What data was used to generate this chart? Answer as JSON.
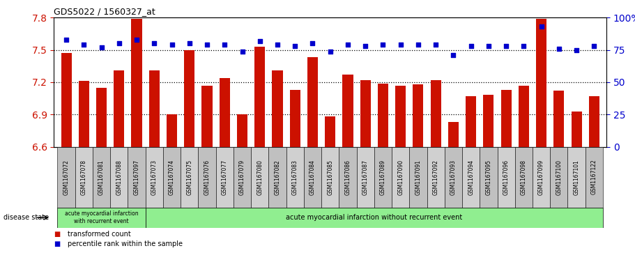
{
  "title": "GDS5022 / 1560327_at",
  "samples": [
    "GSM1167072",
    "GSM1167078",
    "GSM1167081",
    "GSM1167088",
    "GSM1167097",
    "GSM1167073",
    "GSM1167074",
    "GSM1167075",
    "GSM1167076",
    "GSM1167077",
    "GSM1167079",
    "GSM1167080",
    "GSM1167082",
    "GSM1167083",
    "GSM1167084",
    "GSM1167085",
    "GSM1167086",
    "GSM1167087",
    "GSM1167089",
    "GSM1167090",
    "GSM1167091",
    "GSM1167092",
    "GSM1167093",
    "GSM1167094",
    "GSM1167095",
    "GSM1167096",
    "GSM1167098",
    "GSM1167099",
    "GSM1167100",
    "GSM1167101",
    "GSM1167122"
  ],
  "bar_values": [
    7.47,
    7.21,
    7.15,
    7.31,
    7.79,
    7.31,
    6.9,
    7.5,
    7.17,
    7.24,
    6.9,
    7.53,
    7.31,
    7.13,
    7.43,
    6.88,
    7.27,
    7.22,
    7.19,
    7.17,
    7.18,
    7.22,
    6.83,
    7.07,
    7.08,
    7.13,
    7.17,
    7.79,
    7.12,
    6.93,
    7.07
  ],
  "percentile_values": [
    83,
    79,
    77,
    80,
    83,
    80,
    79,
    80,
    79,
    79,
    74,
    82,
    79,
    78,
    80,
    74,
    79,
    78,
    79,
    79,
    79,
    79,
    71,
    78,
    78,
    78,
    78,
    93,
    76,
    75,
    78
  ],
  "group1_count": 5,
  "group1_label": "acute myocardial infarction\nwith recurrent event",
  "group2_label": "acute myocardial infarction without recurrent event",
  "ylim_left": [
    6.6,
    7.8
  ],
  "ylim_right": [
    0,
    100
  ],
  "yticks_left": [
    6.6,
    6.9,
    7.2,
    7.5,
    7.8
  ],
  "yticks_right": [
    0,
    25,
    50,
    75,
    100
  ],
  "ytick_labels_right": [
    "0",
    "25",
    "50",
    "75",
    "100%"
  ],
  "hlines": [
    6.9,
    7.2,
    7.5
  ],
  "bar_color": "#cc1100",
  "scatter_color": "#0000cc",
  "bar_width": 0.6,
  "tick_bg_even": "#c8c8c8",
  "tick_bg_odd": "#d8d8d8",
  "group1_bg": "#90ee90",
  "group2_bg": "#90ee90",
  "legend_bar_label": "transformed count",
  "legend_scatter_label": "percentile rank within the sample",
  "disease_state_label": "disease state"
}
